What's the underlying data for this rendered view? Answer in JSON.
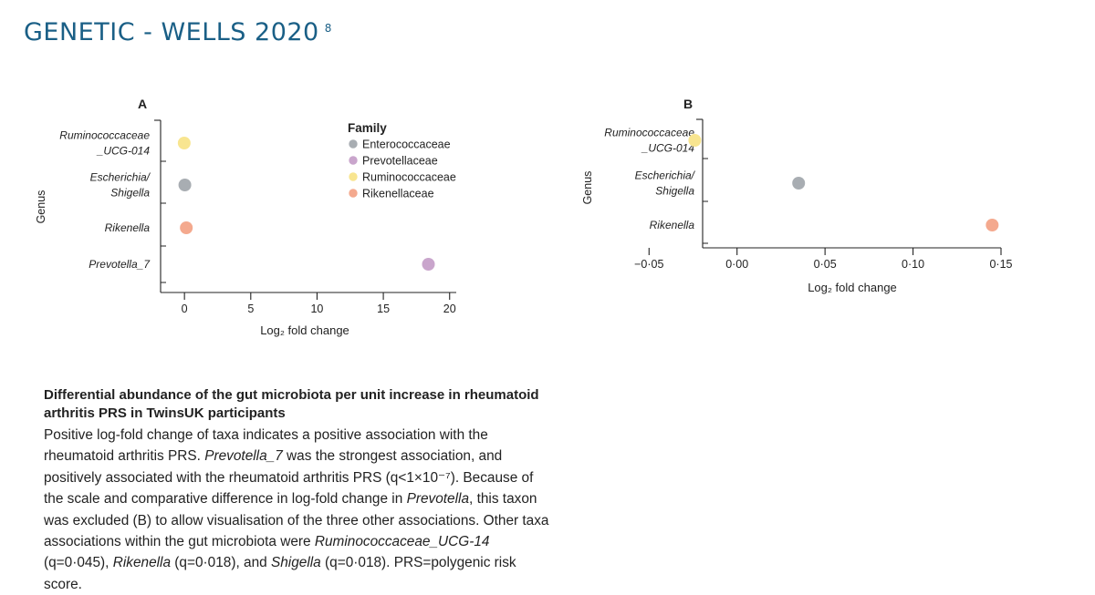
{
  "slide": {
    "title": "GENETIC - WELLS 2020",
    "footnote_marker": "8"
  },
  "colors": {
    "title": "#1a5f86",
    "axis": "#222222",
    "Enterococcaceae": "#a8adb2",
    "Prevotellaceae": "#c9a5cc",
    "Ruminococcaceae": "#f8e590",
    "Rikenellaceae": "#f4a98e"
  },
  "legend": {
    "title": "Family",
    "items": [
      {
        "label": "Enterococcaceae",
        "color": "#a8adb2"
      },
      {
        "label": "Prevotellaceae",
        "color": "#c9a5cc"
      },
      {
        "label": "Ruminococcaceae",
        "color": "#f8e590"
      },
      {
        "label": "Rikenellaceae",
        "color": "#f4a98e"
      }
    ]
  },
  "chart_data": [
    {
      "type": "scatter",
      "panel_label": "A",
      "xlabel": "Log₂ fold change",
      "ylabel": "Genus",
      "xlim": [
        -1.8,
        20.5
      ],
      "xticks": [
        0,
        5,
        10,
        15,
        20
      ],
      "xtick_labels": [
        "0",
        "5",
        "10",
        "15",
        "20"
      ],
      "categories": [
        [
          "Ruminococcaceae",
          "_UCG-014"
        ],
        [
          "Escherichia/",
          "Shigella"
        ],
        [
          "Rikenella"
        ],
        [
          "Prevotella_7"
        ]
      ],
      "points": [
        {
          "genus": "Ruminococcaceae_UCG-014",
          "family": "Ruminococcaceae",
          "x": -0.02
        },
        {
          "genus": "Escherichia/Shigella",
          "family": "Enterococcaceae",
          "x": 0.03
        },
        {
          "genus": "Rikenella",
          "family": "Rikenellaceae",
          "x": 0.14
        },
        {
          "genus": "Prevotella_7",
          "family": "Prevotellaceae",
          "x": 18.4
        }
      ],
      "legend_position": "top-right",
      "grid": false
    },
    {
      "type": "scatter",
      "panel_label": "B",
      "xlabel": "Log₂ fold change",
      "ylabel": "Genus",
      "xlim": [
        -0.06,
        0.15
      ],
      "xticks": [
        -0.05,
        0,
        0.05,
        0.1,
        0.15
      ],
      "xtick_labels": [
        "−0·05",
        "0·00",
        "0·05",
        "0·10",
        "0·15"
      ],
      "categories": [
        [
          "Ruminococcaceae",
          "_UCG-014"
        ],
        [
          "Escherichia/",
          "Shigella"
        ],
        [
          "Rikenella"
        ]
      ],
      "points": [
        {
          "genus": "Ruminococcaceae_UCG-014",
          "family": "Ruminococcaceae",
          "x": -0.024
        },
        {
          "genus": "Escherichia/Shigella",
          "family": "Enterococcaceae",
          "x": 0.035
        },
        {
          "genus": "Rikenella",
          "family": "Rikenellaceae",
          "x": 0.145
        }
      ],
      "grid": false
    }
  ],
  "caption": {
    "title": "Differential abundance of the gut microbiota per unit increase in rheumatoid arthritis PRS in TwinsUK participants",
    "body": [
      {
        "t": "Positive log-fold change of taxa indicates a positive association with the rheumatoid arthritis PRS. "
      },
      {
        "t": "Prevotella_7",
        "i": true
      },
      {
        "t": " was the strongest association, and positively associated with the rheumatoid arthritis PRS (q<1×10⁻⁷). Because of the scale and comparative difference in log-fold change in "
      },
      {
        "t": "Prevotella",
        "i": true
      },
      {
        "t": ", this taxon was excluded (B) to allow visualisation of the three other associations. Other taxa associations within the gut microbiota were "
      },
      {
        "t": "Ruminococcaceae_UCG-14",
        "i": true
      },
      {
        "t": " (q=0·045), "
      },
      {
        "t": "Rikenella",
        "i": true
      },
      {
        "t": " (q=0·018), and "
      },
      {
        "t": "Shigella",
        "i": true
      },
      {
        "t": " (q=0·018). PRS=polygenic risk score."
      }
    ]
  }
}
